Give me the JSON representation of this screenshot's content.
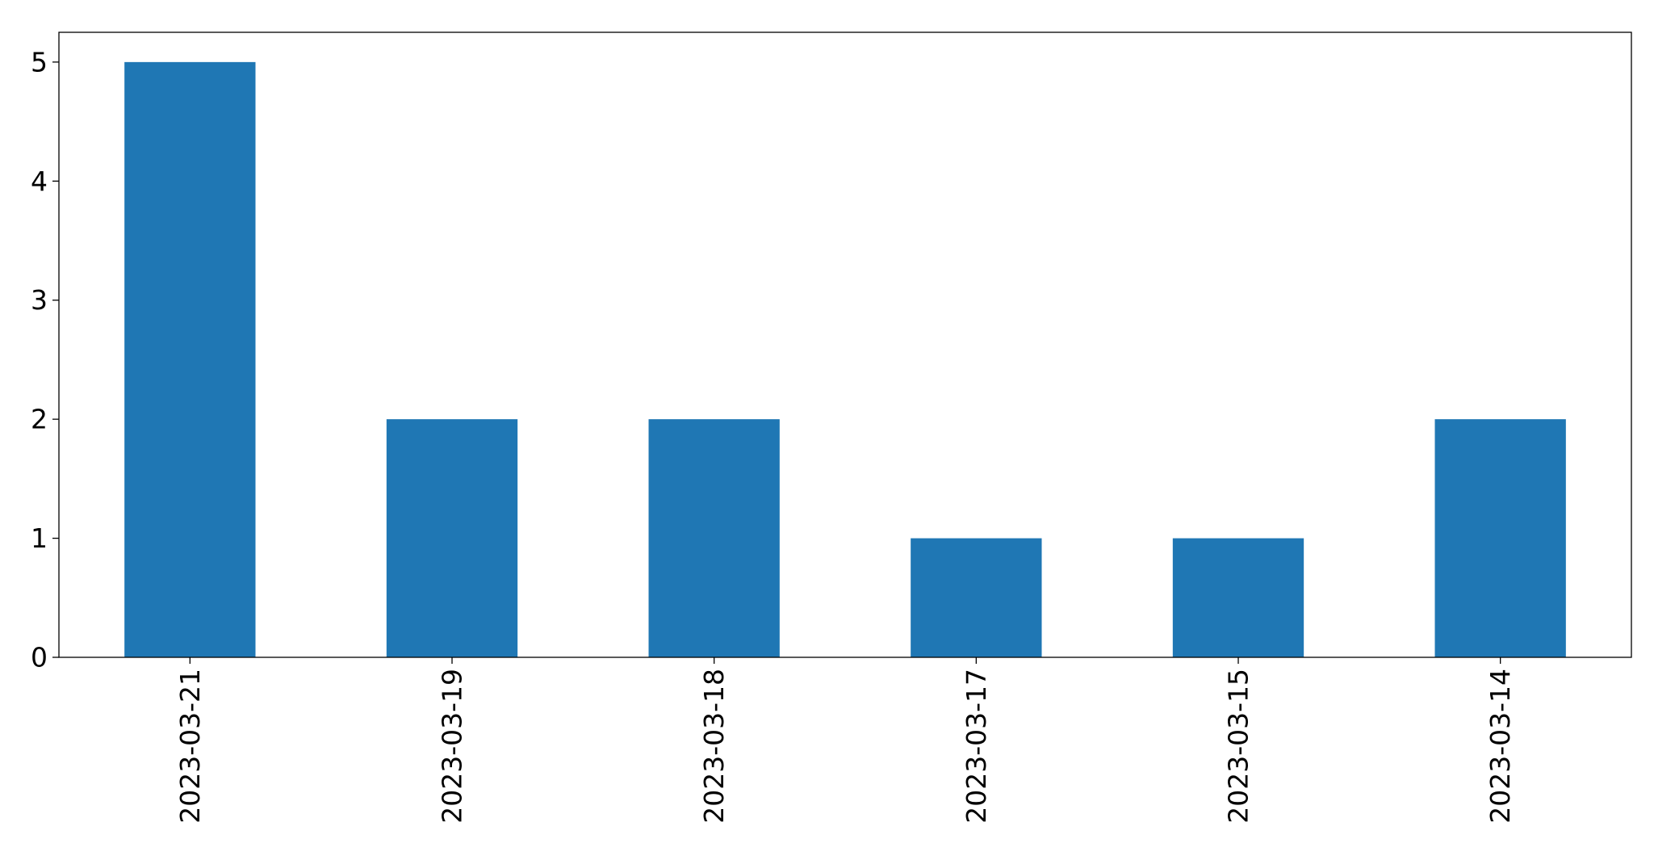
{
  "chart_data": {
    "type": "bar",
    "title": "",
    "xlabel": "",
    "ylabel": "",
    "categories": [
      "2023-03-21",
      "2023-03-19",
      "2023-03-18",
      "2023-03-17",
      "2023-03-15",
      "2023-03-14"
    ],
    "values": [
      5,
      2,
      2,
      1,
      1,
      2
    ],
    "ylim": [
      0,
      5.25
    ],
    "yticks": [
      0,
      1,
      2,
      3,
      4,
      5
    ],
    "grid": false,
    "legend": "none",
    "bar_color": "#1f77b4"
  }
}
